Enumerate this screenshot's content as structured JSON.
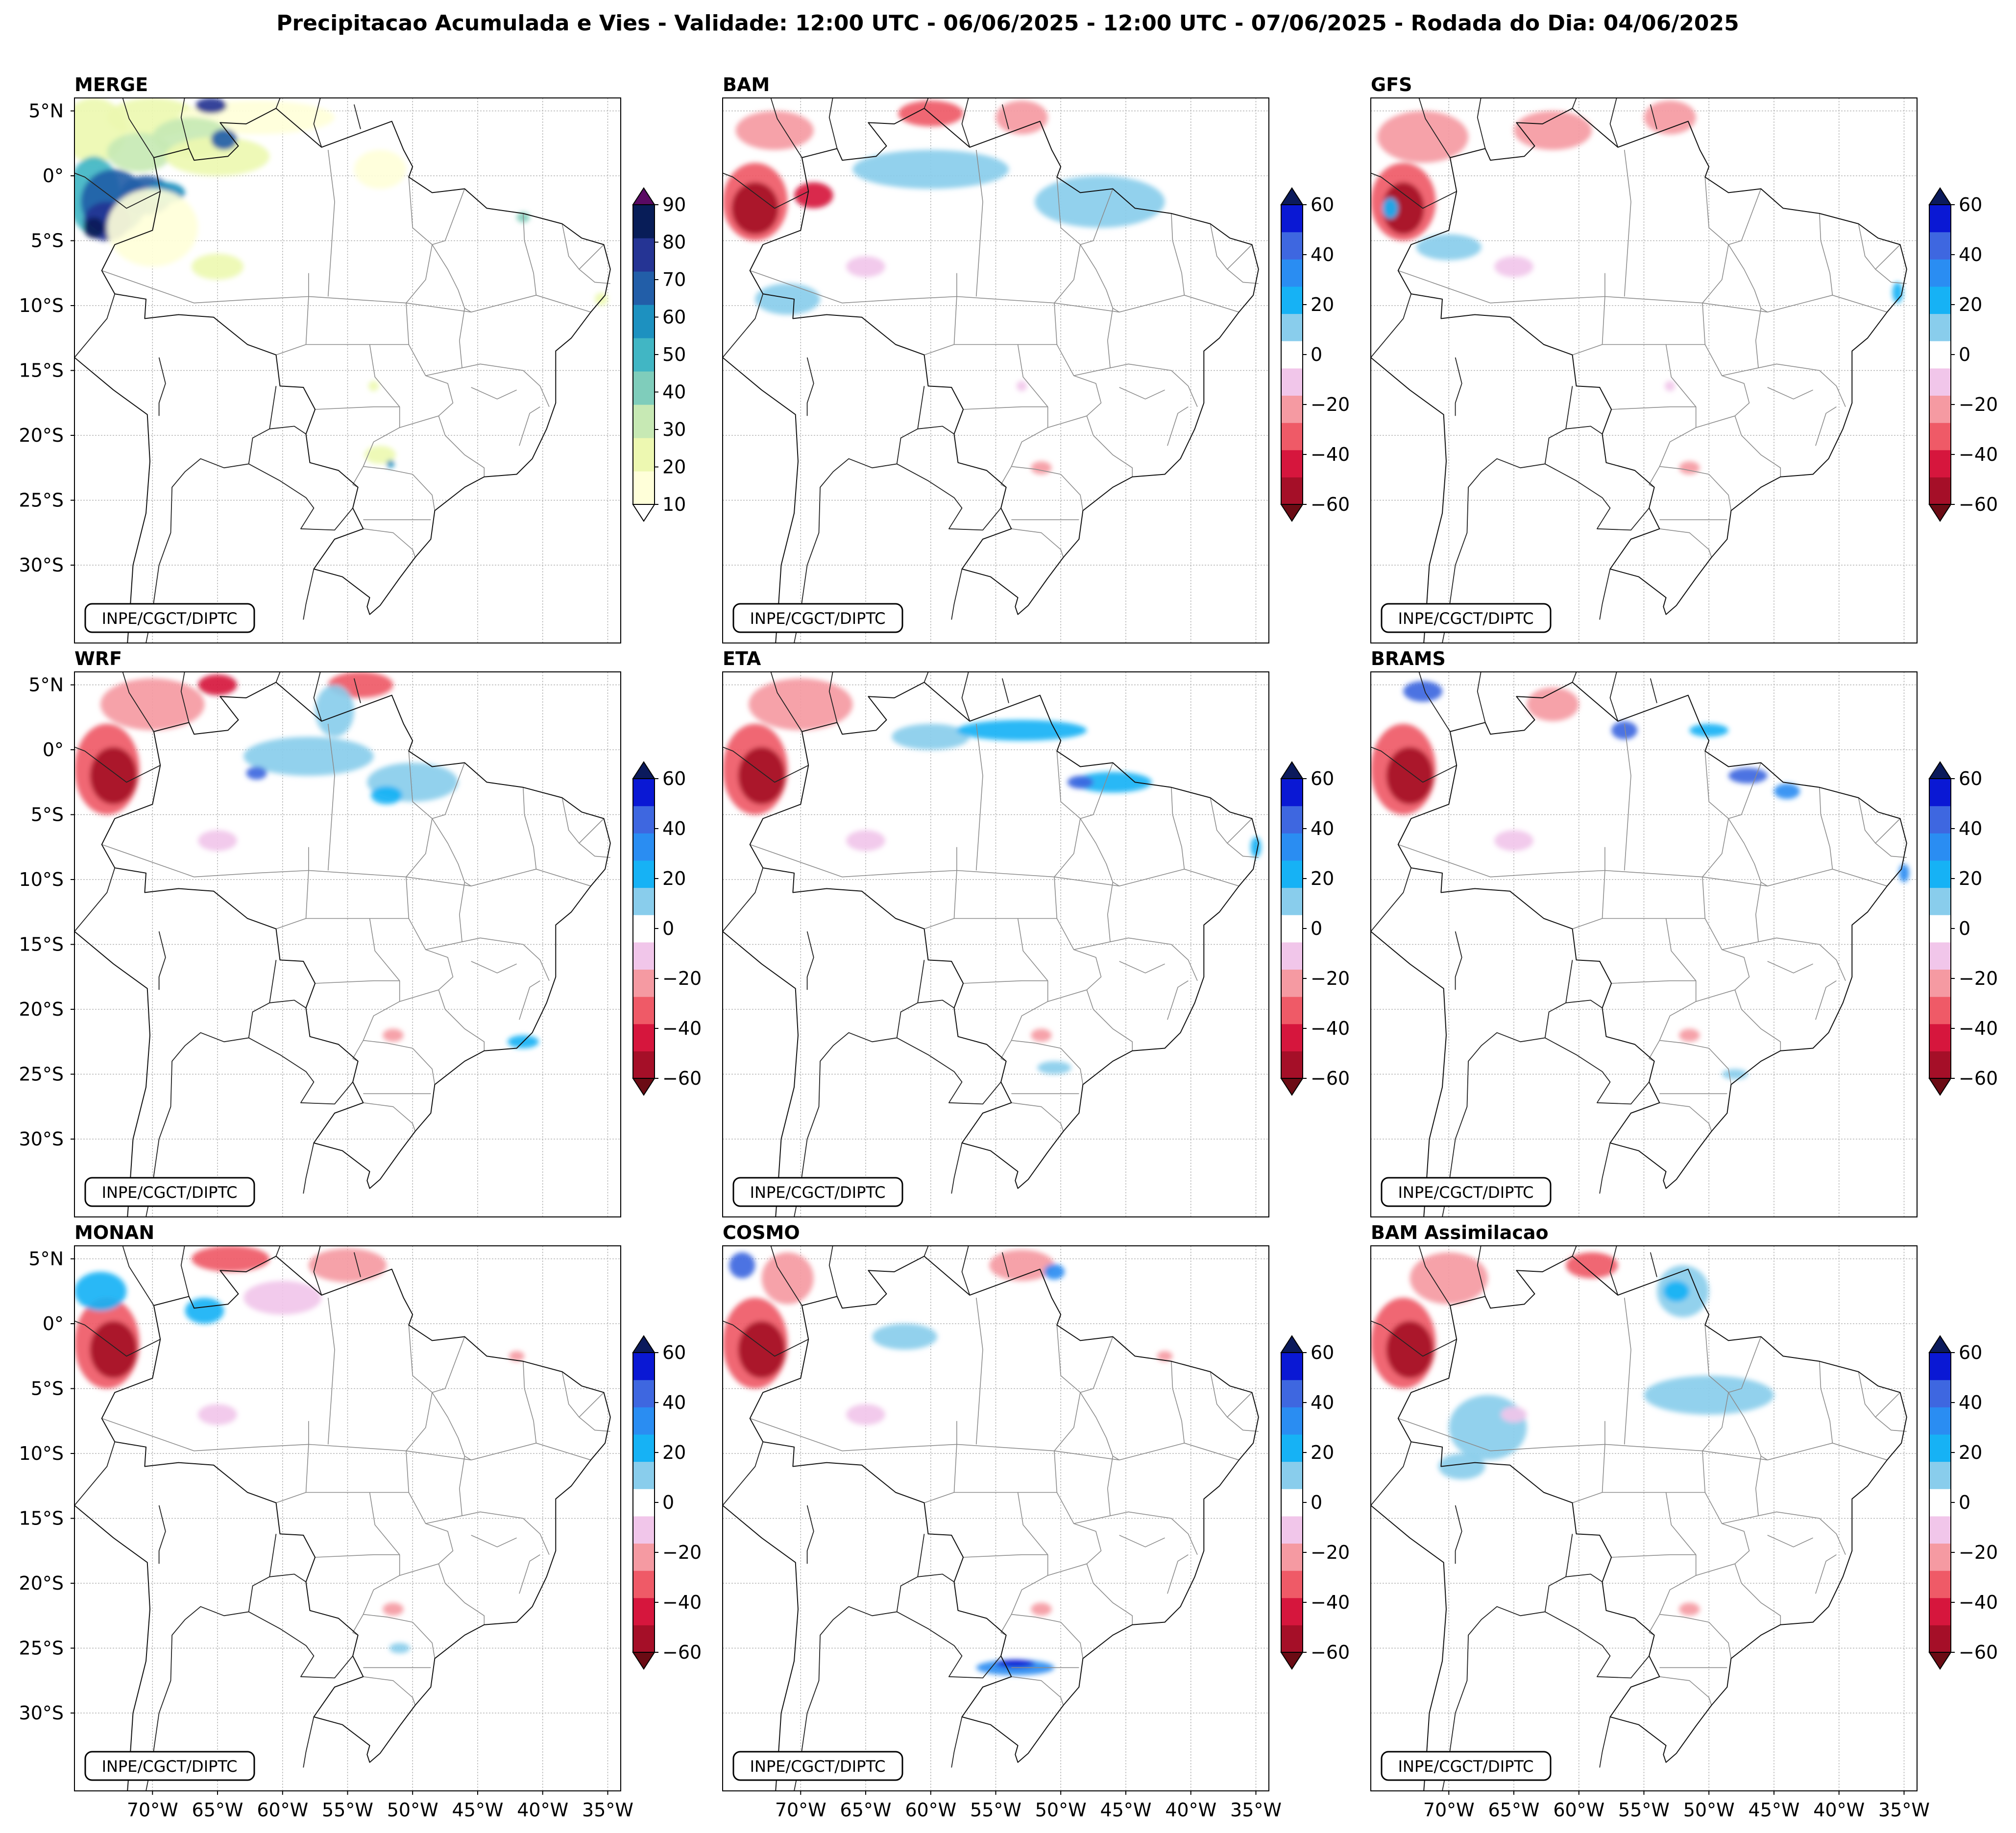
{
  "chart_data": {
    "type": "heatmap",
    "title": "Precipitacao Acumulada e Vies - Validade: 12:00 UTC - 06/06/2025 - 12:00 UTC - 07/06/2025 - Rodada do Dia: 04/06/2025",
    "credit": "INPE/CGCT/DIPTC",
    "lon_range": [
      -76,
      -34
    ],
    "lat_range": [
      -36,
      6
    ],
    "lon_ticks": [
      -70,
      -65,
      -60,
      -55,
      -50,
      -45,
      -40,
      -35
    ],
    "lon_tick_labels": [
      "70°W",
      "65°W",
      "60°W",
      "55°W",
      "50°W",
      "45°W",
      "40°W",
      "35°W"
    ],
    "lat_ticks": [
      5,
      0,
      -5,
      -10,
      -15,
      -20,
      -25,
      -30
    ],
    "lat_tick_labels": [
      "5°N",
      "0°",
      "5°S",
      "10°S",
      "15°S",
      "20°S",
      "25°S",
      "30°S"
    ],
    "precip_scale": {
      "levels": [
        10,
        20,
        30,
        40,
        50,
        60,
        70,
        80,
        90
      ],
      "tick_labels": [
        "10",
        "20",
        "30",
        "40",
        "50",
        "60",
        "70",
        "80",
        "90"
      ],
      "colors": [
        "#ffffd9",
        "#edf8b1",
        "#c7e9b4",
        "#7fcdbb",
        "#41b6c4",
        "#1d91c0",
        "#225ea8",
        "#253494",
        "#081d58"
      ],
      "under_color": "#ffffff",
      "over_color": "#5a0a63"
    },
    "bias_scale": {
      "levels": [
        -60,
        -50,
        -40,
        -30,
        -20,
        -10,
        10,
        20,
        30,
        40,
        50,
        60
      ],
      "tick_labels": [
        "60",
        "40",
        "20",
        "0",
        "−20",
        "−40",
        "−60"
      ],
      "tick_values": [
        60,
        40,
        20,
        0,
        -20,
        -40,
        -60
      ],
      "colors_bottom_to_top": [
        "#a50f28",
        "#d6163d",
        "#ef5a67",
        "#f59aa2",
        "#f1c6ea",
        "#ffffff",
        "#89cdec",
        "#16b2f5",
        "#2a8df2",
        "#3e67e0",
        "#0a18d4"
      ],
      "under_color": "#6b0b14",
      "over_color": "#0b1a5c"
    },
    "panels": [
      {
        "name": "MERGE",
        "kind": "precip",
        "blobs": [
          {
            "lon": -74.5,
            "lat": 3.5,
            "rx": 2.5,
            "ry": 2.5,
            "level": 1
          },
          {
            "lon": -70,
            "lat": 4.5,
            "rx": 3.5,
            "ry": 1.5,
            "level": 1
          },
          {
            "lon": -62,
            "lat": 4.5,
            "rx": 6,
            "ry": 1.3,
            "level": 0
          },
          {
            "lon": -67,
            "lat": 3,
            "rx": 3,
            "ry": 1.5,
            "level": 2
          },
          {
            "lon": -71,
            "lat": 1.8,
            "rx": 2.5,
            "ry": 1.5,
            "level": 2
          },
          {
            "lon": -65,
            "lat": 1.5,
            "rx": 4,
            "ry": 1.5,
            "level": 1
          },
          {
            "lon": -64.5,
            "lat": 2.8,
            "rx": 1,
            "ry": 0.8,
            "level": 6
          },
          {
            "lon": -65.5,
            "lat": 5.4,
            "rx": 1.2,
            "ry": 0.6,
            "level": 7
          },
          {
            "lon": -74.5,
            "lat": -1.5,
            "rx": 2,
            "ry": 3,
            "level": 4
          },
          {
            "lon": -73,
            "lat": -2,
            "rx": 2.5,
            "ry": 2.5,
            "level": 6
          },
          {
            "lon": -73.5,
            "lat": -3.5,
            "rx": 1.8,
            "ry": 1.5,
            "level": 7
          },
          {
            "lon": -70.5,
            "lat": -1.5,
            "rx": 2,
            "ry": 1.5,
            "level": 6
          },
          {
            "lon": -74.5,
            "lat": -4,
            "rx": 0.8,
            "ry": 0.8,
            "level": 8
          },
          {
            "lon": -69,
            "lat": -1.3,
            "rx": 1.5,
            "ry": 0.8,
            "level": 5
          },
          {
            "lon": -70,
            "lat": -4,
            "rx": 3.5,
            "ry": 3,
            "level": 0
          },
          {
            "lon": -65,
            "lat": -7,
            "rx": 2,
            "ry": 1,
            "level": 1
          },
          {
            "lon": -52.5,
            "lat": 0.5,
            "rx": 2,
            "ry": 1.5,
            "level": 0
          },
          {
            "lon": -52.5,
            "lat": -21.5,
            "rx": 1.2,
            "ry": 0.7,
            "level": 1
          },
          {
            "lon": -51.7,
            "lat": -22.2,
            "rx": 0.3,
            "ry": 0.3,
            "level": 5
          },
          {
            "lon": -53,
            "lat": -16.2,
            "rx": 0.4,
            "ry": 0.4,
            "level": 1
          },
          {
            "lon": -35.5,
            "lat": -9.5,
            "rx": 0.5,
            "ry": 0.5,
            "level": 1
          },
          {
            "lon": -41.5,
            "lat": -3.2,
            "rx": 0.5,
            "ry": 0.4,
            "level": 3
          }
        ]
      },
      {
        "name": "BAM",
        "kind": "bias",
        "blobs": [
          {
            "lon": -73.5,
            "lat": -2,
            "rx": 2.5,
            "ry": 3,
            "level": 2
          },
          {
            "lon": -73.5,
            "lat": -2.5,
            "rx": 1.8,
            "ry": 2,
            "level": 0
          },
          {
            "lon": -69,
            "lat": -1.5,
            "rx": 1.5,
            "ry": 1,
            "level": 1
          },
          {
            "lon": -72,
            "lat": 3.5,
            "rx": 3,
            "ry": 1.5,
            "level": 3
          },
          {
            "lon": -60,
            "lat": 4.8,
            "rx": 2.5,
            "ry": 1,
            "level": 2
          },
          {
            "lon": -53,
            "lat": 4.5,
            "rx": 2,
            "ry": 1.3,
            "level": 3
          },
          {
            "lon": -60,
            "lat": 0.5,
            "rx": 6,
            "ry": 1.5,
            "level": 6
          },
          {
            "lon": -47,
            "lat": -2,
            "rx": 5,
            "ry": 2,
            "level": 6
          },
          {
            "lon": -71,
            "lat": -9.5,
            "rx": 2.5,
            "ry": 1.2,
            "level": 6
          },
          {
            "lon": -65,
            "lat": -7,
            "rx": 1.5,
            "ry": 0.8,
            "level": 4
          },
          {
            "lon": -51.5,
            "lat": -22.5,
            "rx": 0.8,
            "ry": 0.5,
            "level": 3
          },
          {
            "lon": -53,
            "lat": -16.2,
            "rx": 0.4,
            "ry": 0.4,
            "level": 4
          }
        ]
      },
      {
        "name": "GFS",
        "kind": "bias",
        "blobs": [
          {
            "lon": -73.5,
            "lat": -2,
            "rx": 2.5,
            "ry": 3,
            "level": 2
          },
          {
            "lon": -73.5,
            "lat": -2.5,
            "rx": 1.6,
            "ry": 2,
            "level": 0
          },
          {
            "lon": -72,
            "lat": 3,
            "rx": 3.5,
            "ry": 2,
            "level": 3
          },
          {
            "lon": -62,
            "lat": 3.5,
            "rx": 3,
            "ry": 1.5,
            "level": 3
          },
          {
            "lon": -53,
            "lat": 4.5,
            "rx": 2,
            "ry": 1.3,
            "level": 3
          },
          {
            "lon": -70,
            "lat": -5.5,
            "rx": 2.5,
            "ry": 1,
            "level": 6
          },
          {
            "lon": -74.5,
            "lat": -2.5,
            "rx": 0.6,
            "ry": 0.8,
            "level": 7
          },
          {
            "lon": -65,
            "lat": -7,
            "rx": 1.5,
            "ry": 0.8,
            "level": 4
          },
          {
            "lon": -35.5,
            "lat": -9,
            "rx": 0.4,
            "ry": 0.8,
            "level": 7
          },
          {
            "lon": -51.5,
            "lat": -22.5,
            "rx": 0.8,
            "ry": 0.5,
            "level": 3
          },
          {
            "lon": -53,
            "lat": -16.2,
            "rx": 0.4,
            "ry": 0.4,
            "level": 4
          }
        ]
      },
      {
        "name": "WRF",
        "kind": "bias",
        "blobs": [
          {
            "lon": -73.5,
            "lat": -1.5,
            "rx": 2.5,
            "ry": 3.5,
            "level": 2
          },
          {
            "lon": -73,
            "lat": -2,
            "rx": 1.8,
            "ry": 2.2,
            "level": 0
          },
          {
            "lon": -70,
            "lat": 3.5,
            "rx": 4,
            "ry": 2,
            "level": 3
          },
          {
            "lon": -65,
            "lat": 5,
            "rx": 1.5,
            "ry": 0.8,
            "level": 1
          },
          {
            "lon": -54,
            "lat": 5,
            "rx": 2.5,
            "ry": 1,
            "level": 2
          },
          {
            "lon": -58,
            "lat": -0.5,
            "rx": 5,
            "ry": 1.5,
            "level": 6
          },
          {
            "lon": -50,
            "lat": -2.5,
            "rx": 3.5,
            "ry": 1.5,
            "level": 6
          },
          {
            "lon": -56,
            "lat": 3,
            "rx": 1.5,
            "ry": 2,
            "level": 6
          },
          {
            "lon": -52,
            "lat": -3.5,
            "rx": 1.2,
            "ry": 0.7,
            "level": 7
          },
          {
            "lon": -62,
            "lat": -1.8,
            "rx": 0.8,
            "ry": 0.5,
            "level": 9
          },
          {
            "lon": -65,
            "lat": -7,
            "rx": 1.5,
            "ry": 0.8,
            "level": 4
          },
          {
            "lon": -41.5,
            "lat": -22.5,
            "rx": 1.2,
            "ry": 0.5,
            "level": 7
          },
          {
            "lon": -51.5,
            "lat": -22,
            "rx": 0.8,
            "ry": 0.5,
            "level": 3
          }
        ]
      },
      {
        "name": "ETA",
        "kind": "bias",
        "blobs": [
          {
            "lon": -73.5,
            "lat": -1.5,
            "rx": 2.5,
            "ry": 3.5,
            "level": 2
          },
          {
            "lon": -73,
            "lat": -2,
            "rx": 1.8,
            "ry": 2.2,
            "level": 0
          },
          {
            "lon": -70,
            "lat": 3.5,
            "rx": 4,
            "ry": 2,
            "level": 3
          },
          {
            "lon": -60,
            "lat": 1,
            "rx": 3,
            "ry": 1,
            "level": 6
          },
          {
            "lon": -53,
            "lat": 1.5,
            "rx": 5,
            "ry": 0.8,
            "level": 7
          },
          {
            "lon": -46,
            "lat": -2.5,
            "rx": 3,
            "ry": 0.8,
            "level": 7
          },
          {
            "lon": -48.5,
            "lat": -2.5,
            "rx": 1,
            "ry": 0.5,
            "level": 9
          },
          {
            "lon": -65,
            "lat": -7,
            "rx": 1.5,
            "ry": 0.8,
            "level": 4
          },
          {
            "lon": -35,
            "lat": -7.5,
            "rx": 0.4,
            "ry": 0.8,
            "level": 7
          },
          {
            "lon": -50.5,
            "lat": -24.5,
            "rx": 1.3,
            "ry": 0.5,
            "level": 6
          },
          {
            "lon": -51.5,
            "lat": -22,
            "rx": 0.8,
            "ry": 0.5,
            "level": 3
          }
        ]
      },
      {
        "name": "BRAMS",
        "kind": "bias",
        "blobs": [
          {
            "lon": -73.5,
            "lat": -1.5,
            "rx": 2.5,
            "ry": 3.5,
            "level": 2
          },
          {
            "lon": -73,
            "lat": -2,
            "rx": 1.8,
            "ry": 2.2,
            "level": 0
          },
          {
            "lon": -72,
            "lat": 4.5,
            "rx": 1.5,
            "ry": 0.8,
            "level": 9
          },
          {
            "lon": -62,
            "lat": 3.5,
            "rx": 2,
            "ry": 1.3,
            "level": 3
          },
          {
            "lon": -56.5,
            "lat": 1.5,
            "rx": 1,
            "ry": 0.7,
            "level": 9
          },
          {
            "lon": -50,
            "lat": 1.5,
            "rx": 1.5,
            "ry": 0.5,
            "level": 7
          },
          {
            "lon": -47,
            "lat": -2,
            "rx": 1.5,
            "ry": 0.6,
            "level": 9
          },
          {
            "lon": -44,
            "lat": -3.2,
            "rx": 1,
            "ry": 0.6,
            "level": 8
          },
          {
            "lon": -65,
            "lat": -7,
            "rx": 1.5,
            "ry": 0.8,
            "level": 4
          },
          {
            "lon": -35,
            "lat": -9.5,
            "rx": 0.4,
            "ry": 0.7,
            "level": 8
          },
          {
            "lon": -51.5,
            "lat": -22,
            "rx": 0.8,
            "ry": 0.5,
            "level": 3
          },
          {
            "lon": -48,
            "lat": -25,
            "rx": 1,
            "ry": 0.4,
            "level": 6
          }
        ]
      },
      {
        "name": "MONAN",
        "kind": "bias",
        "blobs": [
          {
            "lon": -73.5,
            "lat": -1.5,
            "rx": 2.5,
            "ry": 3.5,
            "level": 2
          },
          {
            "lon": -73,
            "lat": -2,
            "rx": 1.8,
            "ry": 2.2,
            "level": 0
          },
          {
            "lon": -74,
            "lat": 2.5,
            "rx": 2,
            "ry": 1.5,
            "level": 7
          },
          {
            "lon": -66,
            "lat": 1,
            "rx": 1.5,
            "ry": 1,
            "level": 7
          },
          {
            "lon": -64,
            "lat": 5,
            "rx": 3,
            "ry": 1,
            "level": 2
          },
          {
            "lon": -55,
            "lat": 4.5,
            "rx": 3,
            "ry": 1.3,
            "level": 3
          },
          {
            "lon": -60,
            "lat": 2,
            "rx": 3,
            "ry": 1.3,
            "level": 4
          },
          {
            "lon": -51,
            "lat": -25,
            "rx": 0.8,
            "ry": 0.4,
            "level": 6
          },
          {
            "lon": -65,
            "lat": -7,
            "rx": 1.5,
            "ry": 0.8,
            "level": 4
          },
          {
            "lon": -51.5,
            "lat": -22,
            "rx": 0.8,
            "ry": 0.5,
            "level": 3
          },
          {
            "lon": -42,
            "lat": -2.5,
            "rx": 0.6,
            "ry": 0.4,
            "level": 3
          }
        ]
      },
      {
        "name": "COSMO",
        "kind": "bias",
        "blobs": [
          {
            "lon": -73.5,
            "lat": -1.5,
            "rx": 2.5,
            "ry": 3.5,
            "level": 2
          },
          {
            "lon": -73,
            "lat": -2,
            "rx": 1.8,
            "ry": 2.2,
            "level": 0
          },
          {
            "lon": -71,
            "lat": 3.5,
            "rx": 2,
            "ry": 2,
            "level": 3
          },
          {
            "lon": -74.5,
            "lat": 4.5,
            "rx": 1,
            "ry": 1,
            "level": 9
          },
          {
            "lon": -53,
            "lat": 4.5,
            "rx": 2.5,
            "ry": 1.2,
            "level": 3
          },
          {
            "lon": -50.5,
            "lat": 4,
            "rx": 0.8,
            "ry": 0.6,
            "level": 8
          },
          {
            "lon": -62,
            "lat": -1,
            "rx": 2.5,
            "ry": 1,
            "level": 6
          },
          {
            "lon": -65,
            "lat": -7,
            "rx": 1.5,
            "ry": 0.8,
            "level": 4
          },
          {
            "lon": -53.5,
            "lat": -26.5,
            "rx": 3,
            "ry": 0.6,
            "level": 8
          },
          {
            "lon": -53.5,
            "lat": -26.2,
            "rx": 1.5,
            "ry": 0.3,
            "level": 10
          },
          {
            "lon": -51.5,
            "lat": -22,
            "rx": 0.8,
            "ry": 0.5,
            "level": 3
          },
          {
            "lon": -42,
            "lat": -2.5,
            "rx": 0.6,
            "ry": 0.4,
            "level": 3
          }
        ]
      },
      {
        "name": "BAM Assimilacao",
        "kind": "bias",
        "blobs": [
          {
            "lon": -73.5,
            "lat": -1.5,
            "rx": 2.5,
            "ry": 3.5,
            "level": 2
          },
          {
            "lon": -73,
            "lat": -2,
            "rx": 1.8,
            "ry": 2.2,
            "level": 0
          },
          {
            "lon": -70,
            "lat": 3.5,
            "rx": 3,
            "ry": 2,
            "level": 3
          },
          {
            "lon": -59,
            "lat": 4.5,
            "rx": 2,
            "ry": 1,
            "level": 2
          },
          {
            "lon": -52,
            "lat": 2.5,
            "rx": 2,
            "ry": 2,
            "level": 6
          },
          {
            "lon": -52.5,
            "lat": 2.5,
            "rx": 1,
            "ry": 0.8,
            "level": 7
          },
          {
            "lon": -50,
            "lat": -5.5,
            "rx": 5,
            "ry": 1.5,
            "level": 6
          },
          {
            "lon": -67,
            "lat": -8,
            "rx": 3,
            "ry": 2.5,
            "level": 6
          },
          {
            "lon": -69,
            "lat": -11,
            "rx": 1.8,
            "ry": 1,
            "level": 6
          },
          {
            "lon": -65,
            "lat": -7,
            "rx": 1,
            "ry": 0.6,
            "level": 4
          },
          {
            "lon": -51.5,
            "lat": -22,
            "rx": 0.8,
            "ry": 0.5,
            "level": 3
          }
        ]
      }
    ]
  }
}
